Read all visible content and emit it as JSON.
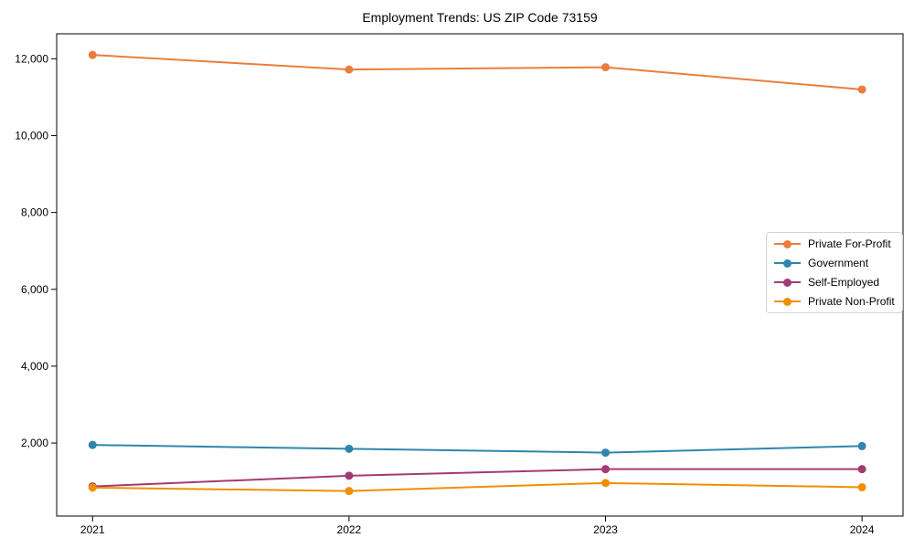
{
  "figure": {
    "background": "#ffffff",
    "axis_color": "#000000",
    "text_color": "#000000"
  },
  "chart_data": {
    "type": "line",
    "title": "Employment Trends: US ZIP Code 73159",
    "x": [
      2021,
      2022,
      2023,
      2024
    ],
    "x_tick_labels": [
      "2021",
      "2022",
      "2023",
      "2024"
    ],
    "series": [
      {
        "name": "Private For-Profit",
        "color": "#EB7D3C",
        "values": [
          12100,
          11720,
          11780,
          11200
        ]
      },
      {
        "name": "Government",
        "color": "#2E86AB",
        "values": [
          1950,
          1850,
          1750,
          1920
        ]
      },
      {
        "name": "Self-Employed",
        "color": "#A23B72",
        "values": [
          870,
          1150,
          1320,
          1320
        ]
      },
      {
        "name": "Private Non-Profit",
        "color": "#F18F01",
        "values": [
          840,
          750,
          960,
          850
        ]
      }
    ],
    "xlabel": "",
    "ylabel": "",
    "xlim": [
      2020.86,
      2024.16
    ],
    "ylim": [
      100,
      12650
    ],
    "yticks": [
      2000,
      4000,
      6000,
      8000,
      10000,
      12000
    ],
    "ytick_labels": [
      "2,000",
      "4,000",
      "6,000",
      "8,000",
      "10,000",
      "12,000"
    ],
    "grid": false,
    "legend": {
      "position": "inside-right",
      "entries": [
        "Private For-Profit",
        "Government",
        "Self-Employed",
        "Private Non-Profit"
      ]
    }
  }
}
